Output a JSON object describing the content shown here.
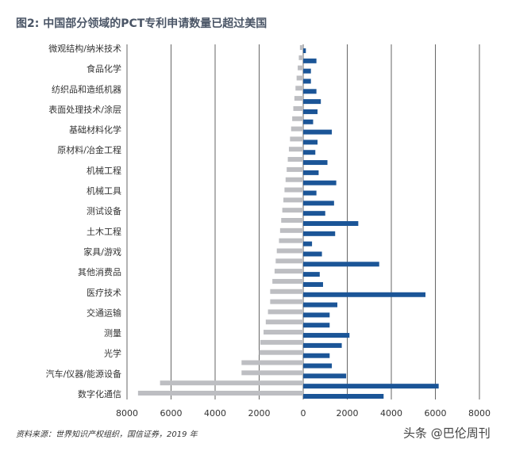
{
  "chart_data": {
    "type": "butterfly-bar",
    "title": "图2: 中国部分领域的PCT专利申请数量已超过美国",
    "source": "资料来源：世界知识产权组织，国信证券，2019 年",
    "watermark": "头条 @巴伦周刊",
    "categories": [
      "微观结构/纳米技术",
      null,
      "食品化学",
      null,
      "纺织品和造纸机器",
      null,
      "表面处理技术/涂层",
      null,
      "基础材料化学",
      null,
      "原材料/冶金工程",
      null,
      "机械工程",
      null,
      "机械工具",
      null,
      "测试设备",
      null,
      "土木工程",
      null,
      "家具/游戏",
      null,
      "其他消费品",
      null,
      "医疗技术",
      null,
      "交通运输",
      null,
      "测量",
      null,
      "光学",
      null,
      "汽车/仪器/能源设备",
      null,
      "数字化通信"
    ],
    "series": [
      {
        "color": "#bdbec2",
        "side": "left",
        "values": [
          150,
          200,
          250,
          300,
          350,
          400,
          450,
          500,
          550,
          600,
          650,
          700,
          750,
          800,
          850,
          900,
          950,
          1000,
          1050,
          1100,
          1200,
          1250,
          1300,
          1400,
          1500,
          1500,
          1600,
          1700,
          1800,
          1950,
          2000,
          2800,
          2800,
          6500,
          7500
        ]
      },
      {
        "color": "#1b5597",
        "side": "right",
        "values": [
          120,
          600,
          350,
          350,
          600,
          800,
          650,
          450,
          1300,
          650,
          550,
          1100,
          700,
          1500,
          600,
          1400,
          1000,
          2500,
          1450,
          400,
          850,
          3450,
          750,
          900,
          5550,
          1550,
          1200,
          1200,
          2100,
          1750,
          1200,
          1300,
          1950,
          6150,
          3650
        ]
      }
    ],
    "xlim": [
      -8000,
      8000
    ],
    "xticks": [
      {
        "value": -8000,
        "label": "8000"
      },
      {
        "value": -6000,
        "label": "6000"
      },
      {
        "value": -4000,
        "label": "4000"
      },
      {
        "value": -2000,
        "label": "2000"
      },
      0,
      2000,
      4000,
      6000,
      8000
    ],
    "grid": true
  }
}
